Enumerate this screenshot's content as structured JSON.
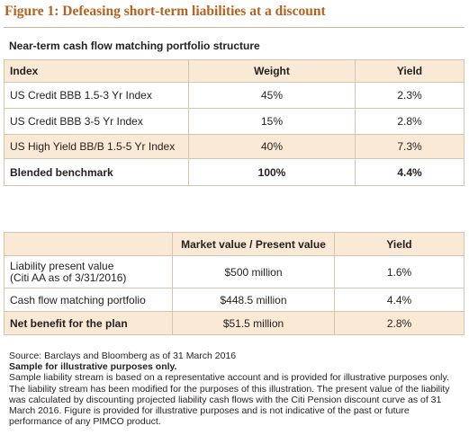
{
  "figure_title": "Figure 1: Defeasing short-term liabilities at a discount",
  "table1": {
    "title": "Near-term cash flow matching portfolio structure",
    "headers": [
      "Index",
      "Weight",
      "Yield"
    ],
    "rows": [
      [
        "US Credit BBB 1.5-3 Yr Index",
        "45%",
        "2.3%"
      ],
      [
        "US Credit BBB 3-5 Yr Index",
        "15%",
        "2.8%"
      ],
      [
        "US High Yield BB/B 1.5-5 Yr Index",
        "40%",
        "7.3%"
      ],
      [
        "Blended benchmark",
        "100%",
        "4.4%"
      ]
    ]
  },
  "table2": {
    "headers": [
      "",
      "Market value / Present value",
      "Yield"
    ],
    "rows": [
      [
        "Liability present value",
        "(Citi AA as of 3/31/2016)",
        "$500 million",
        "1.6%"
      ],
      [
        "Cash flow matching portfolio",
        "$448.5 million",
        "4.4%"
      ],
      [
        "Net benefit for the plan",
        "$51.5 million",
        "2.8%"
      ]
    ]
  },
  "source": {
    "line1": "Source: Barclays and Bloomberg as of 31 March 2016",
    "line2": "Sample for illustrative purposes only.",
    "note": "Sample liability stream is based on a representative account and is provided for illustrative purposes only. The liability stream has been modified for the purposes of this illustration. The present value of the liability was calculated by discounting projected liability cash flows with the Citi Pension discount curve as of 31 March 2016. Figure is provided for illustrative purposes and is not indicative of the past or future performance of any PIMCO product."
  }
}
